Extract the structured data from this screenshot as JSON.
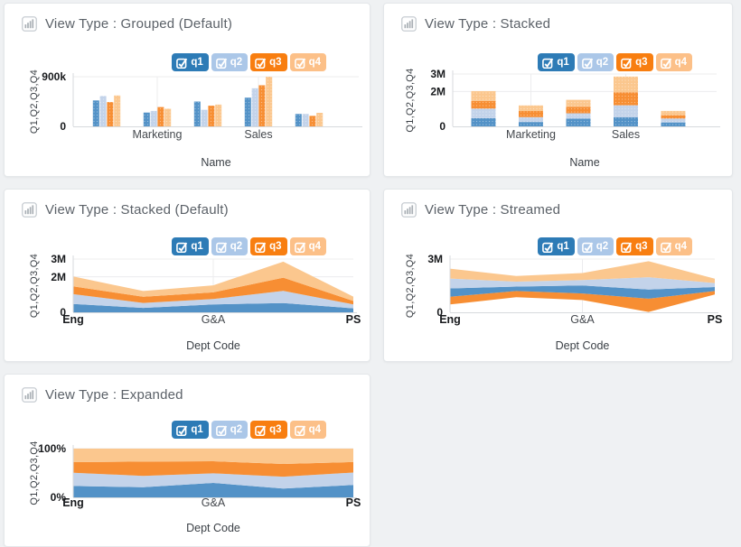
{
  "page_background": "#eff1f3",
  "card_style": {
    "background": "#ffffff",
    "border": "#e4e7ea"
  },
  "series": [
    {
      "id": "q1",
      "label": "q1",
      "legend_color": "#2d7bb6",
      "fill": "#5392c7"
    },
    {
      "id": "q2",
      "label": "q2",
      "legend_color": "#abc7e8",
      "fill": "#c3d3ea"
    },
    {
      "id": "q3",
      "label": "q3",
      "legend_color": "#f87e10",
      "fill": "#f78e33"
    },
    {
      "id": "q4",
      "label": "q4",
      "legend_color": "#fcc088",
      "fill": "#fbc78e"
    }
  ],
  "chart_data": [
    {
      "type": "bar",
      "variant": "grouped",
      "title": "View Type : Grouped (Default)",
      "xlabel": "Name",
      "ylabel": "Q1,Q2,Q3,Q4",
      "categories": [
        "",
        "Marketing",
        "",
        "Sales",
        ""
      ],
      "series": [
        {
          "name": "q1",
          "values": [
            470000,
            250000,
            450000,
            520000,
            225000
          ]
        },
        {
          "name": "q2",
          "values": [
            550000,
            280000,
            300000,
            690000,
            225000
          ]
        },
        {
          "name": "q3",
          "values": [
            440000,
            350000,
            375000,
            745000,
            190000
          ]
        },
        {
          "name": "q4",
          "values": [
            560000,
            320000,
            395000,
            900000,
            245000
          ]
        }
      ],
      "ylim": [
        0,
        900000
      ],
      "yticks": [
        {
          "value": 900000,
          "label": "900k"
        },
        {
          "value": 0,
          "label": "0"
        }
      ],
      "legend": [
        "q1",
        "q2",
        "q3",
        "q4"
      ],
      "legend_position": "top-right",
      "grid": "light"
    },
    {
      "type": "bar",
      "variant": "stacked",
      "title": "View Type : Stacked",
      "xlabel": "Name",
      "ylabel": "Q1,Q2,Q3,Q4",
      "categories": [
        "",
        "Marketing",
        "",
        "Sales",
        ""
      ],
      "series": [
        {
          "name": "q1",
          "values": [
            470000,
            250000,
            450000,
            520000,
            225000
          ]
        },
        {
          "name": "q2",
          "values": [
            550000,
            280000,
            300000,
            690000,
            225000
          ]
        },
        {
          "name": "q3",
          "values": [
            440000,
            350000,
            375000,
            745000,
            190000
          ]
        },
        {
          "name": "q4",
          "values": [
            560000,
            320000,
            395000,
            900000,
            245000
          ]
        }
      ],
      "ylim": [
        0,
        3000000
      ],
      "yticks": [
        {
          "value": 3000000,
          "label": "3M"
        },
        {
          "value": 2000000,
          "label": "2M"
        },
        {
          "value": 0,
          "label": "0"
        }
      ],
      "legend": [
        "q1",
        "q2",
        "q3",
        "q4"
      ],
      "legend_position": "top-right",
      "grid": "light"
    },
    {
      "type": "area",
      "variant": "stacked",
      "title": "View Type : Stacked (Default)",
      "xlabel": "Dept Code",
      "ylabel": "Q1,Q2,Q3,Q4",
      "categories": [
        "Eng",
        "",
        "G&A",
        "",
        "PS"
      ],
      "series": [
        {
          "name": "q1",
          "values": [
            470000,
            250000,
            450000,
            520000,
            225000
          ]
        },
        {
          "name": "q2",
          "values": [
            550000,
            280000,
            300000,
            690000,
            225000
          ]
        },
        {
          "name": "q3",
          "values": [
            440000,
            350000,
            375000,
            745000,
            190000
          ]
        },
        {
          "name": "q4",
          "values": [
            560000,
            320000,
            395000,
            900000,
            245000
          ]
        }
      ],
      "ylim": [
        0,
        3000000
      ],
      "yticks": [
        {
          "value": 3000000,
          "label": "3M"
        },
        {
          "value": 2000000,
          "label": "2M"
        },
        {
          "value": 0,
          "label": "0"
        }
      ],
      "legend": [
        "q1",
        "q2",
        "q3",
        "q4"
      ],
      "legend_position": "top-right",
      "grid": "light"
    },
    {
      "type": "area",
      "variant": "streamed",
      "title": "View Type : Streamed",
      "xlabel": "Dept Code",
      "ylabel": "Q1,Q2,Q3,Q4",
      "categories": [
        "Eng",
        "",
        "G&A",
        "",
        "PS"
      ],
      "series": [
        {
          "name": "q1",
          "values": [
            470000,
            250000,
            450000,
            520000,
            225000
          ]
        },
        {
          "name": "q2",
          "values": [
            550000,
            280000,
            300000,
            690000,
            225000
          ]
        },
        {
          "name": "q3",
          "values": [
            440000,
            350000,
            375000,
            745000,
            190000
          ]
        },
        {
          "name": "q4",
          "values": [
            560000,
            320000,
            395000,
            900000,
            245000
          ]
        }
      ],
      "ylim": [
        0,
        3000000
      ],
      "yticks": [
        {
          "value": 3000000,
          "label": "3M"
        },
        {
          "value": 0,
          "label": "0"
        }
      ],
      "stack_order_bottom_to_top": [
        "q3",
        "q1",
        "q2",
        "q4"
      ],
      "legend": [
        "q1",
        "q2",
        "q3",
        "q4"
      ],
      "legend_position": "top-right",
      "grid": "light"
    },
    {
      "type": "area",
      "variant": "expanded",
      "title": "View Type : Expanded",
      "xlabel": "Dept Code",
      "ylabel": "Q1,Q2,Q3,Q4",
      "categories": [
        "Eng",
        "",
        "G&A",
        "",
        "PS"
      ],
      "series": [
        {
          "name": "q1",
          "values": [
            470000,
            250000,
            450000,
            520000,
            225000
          ]
        },
        {
          "name": "q2",
          "values": [
            550000,
            280000,
            300000,
            690000,
            225000
          ]
        },
        {
          "name": "q3",
          "values": [
            440000,
            350000,
            375000,
            745000,
            190000
          ]
        },
        {
          "name": "q4",
          "values": [
            560000,
            320000,
            395000,
            900000,
            245000
          ]
        }
      ],
      "ylim": [
        0,
        1
      ],
      "yticks": [
        {
          "value": 1,
          "label": "100%"
        },
        {
          "value": 0,
          "label": "0%"
        }
      ],
      "normalized": true,
      "legend": [
        "q1",
        "q2",
        "q3",
        "q4"
      ],
      "legend_position": "top-right",
      "grid": "light"
    }
  ]
}
